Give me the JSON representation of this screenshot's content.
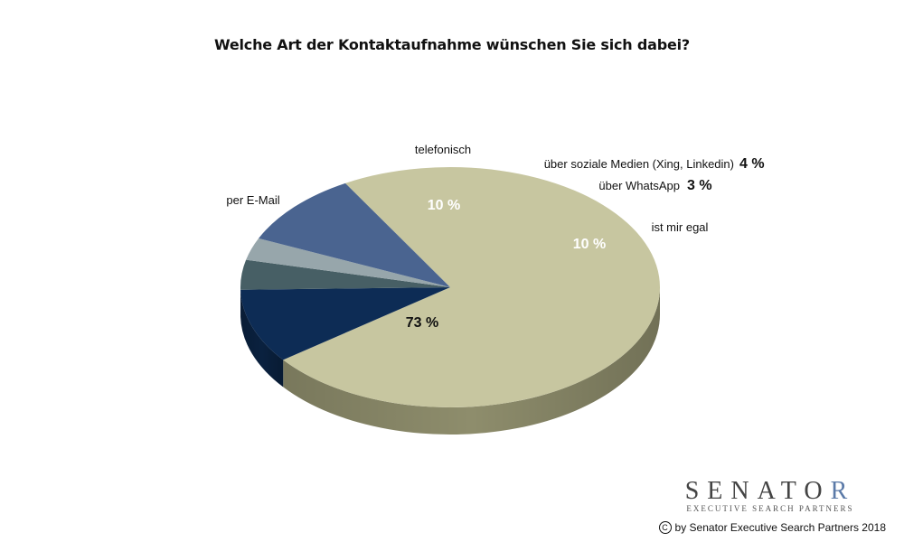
{
  "chart_data": {
    "type": "pie",
    "title": "Welche Art der Kontaktaufnahme wünschen Sie sich dabei?",
    "slices": [
      {
        "label": "per E-Mail",
        "value": 73,
        "value_label": "73 %",
        "color": "#c7c6a0",
        "side_color": "#8e8d6c"
      },
      {
        "label": "telefonisch",
        "value": 10,
        "value_label": "10 %",
        "color": "#0d2c55",
        "side_color": "#0a213f"
      },
      {
        "label": "über soziale Medien (Xing, Linkedin)",
        "value": 4,
        "value_label": "4 %",
        "color": "#475f65",
        "side_color": "#34474c"
      },
      {
        "label": "über WhatsApp",
        "value": 3,
        "value_label": "3 %",
        "color": "#97a6ab",
        "side_color": "#6f7c80"
      },
      {
        "label": "ist mir egal",
        "value": 10,
        "value_label": "10 %",
        "color": "#4a6490",
        "side_color": "#36496b"
      }
    ]
  },
  "logo": {
    "word_main": "SENATO",
    "word_accent": "R",
    "subtitle": "EXECUTIVE SEARCH PARTNERS"
  },
  "copyright": {
    "symbol": "C",
    "text": "by Senator Executive Search Partners 2018"
  }
}
